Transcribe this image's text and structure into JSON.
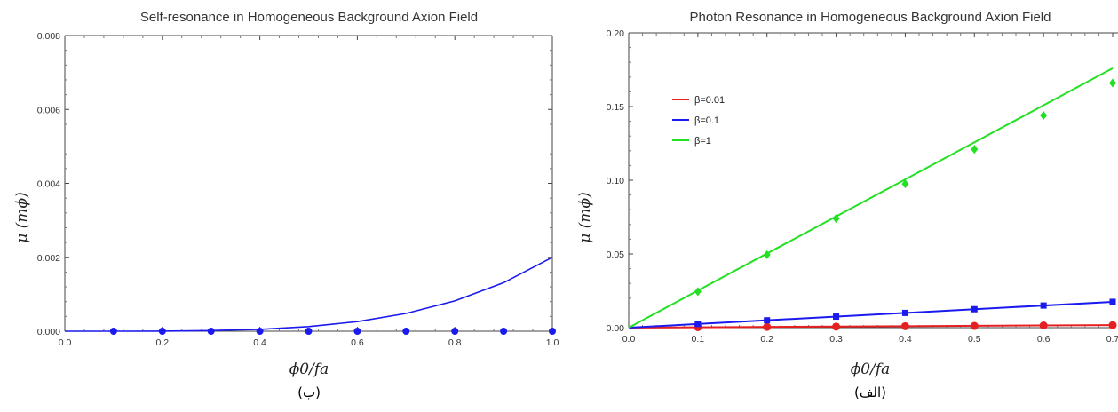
{
  "chart_data": [
    {
      "type": "scatter",
      "title": "Self-resonance in Homogeneous Background Axion Field",
      "xlabel": "ϕ0/fa",
      "ylabel": "μ (mϕ)",
      "caption": "(ب)",
      "xlim": [
        0,
        1.0
      ],
      "ylim": [
        0,
        0.008
      ],
      "xticks": [
        "0.0",
        "0.2",
        "0.4",
        "0.6",
        "0.8",
        "1.0"
      ],
      "yticks": [
        "0.000",
        "0.002",
        "0.004",
        "0.006",
        "0.008"
      ],
      "grid": false,
      "colors": {
        "series": "#1a1aee"
      },
      "series": [
        {
          "kind": "points",
          "x": [
            0.1,
            0.2,
            0.3,
            0.4,
            0.5,
            0.6,
            0.7,
            0.8,
            0.9,
            1.0
          ],
          "y": [
            0,
            0,
            0,
            0,
            0,
            0,
            0,
            0,
            0,
            0
          ]
        },
        {
          "kind": "fit",
          "x": [
            0.0,
            0.1,
            0.2,
            0.3,
            0.4,
            0.5,
            0.6,
            0.7,
            0.8,
            0.9,
            1.0
          ],
          "y": [
            0.0,
            2e-07,
            3.2e-06,
            1.6e-05,
            5.12e-05,
            0.000125,
            0.000259,
            0.00048,
            0.000819,
            0.001312,
            0.002
          ]
        }
      ]
    },
    {
      "type": "scatter",
      "title": "Photon Resonance in Homogeneous Background Axion Field",
      "xlabel": "ϕ0/fa",
      "ylabel": "μ (mϕ)",
      "caption": "(الف)",
      "xlim": [
        0,
        0.7
      ],
      "ylim": [
        0,
        0.2
      ],
      "xticks": [
        "0.0",
        "0.1",
        "0.2",
        "0.3",
        "0.4",
        "0.5",
        "0.6",
        "0.7"
      ],
      "yticks": [
        "0.00",
        "0.05",
        "0.10",
        "0.15",
        "0.20"
      ],
      "grid": false,
      "legend_position": "upper-left",
      "series": [
        {
          "name": "β=0.01",
          "color": "#e62020",
          "marker": "circle",
          "points_x": [
            0.1,
            0.2,
            0.3,
            0.4,
            0.5,
            0.6,
            0.7
          ],
          "points_y": [
            0.0003,
            0.0005,
            0.0007,
            0.001,
            0.0012,
            0.0015,
            0.0017
          ],
          "fit_x": [
            0.0,
            0.7
          ],
          "fit_y": [
            0.0,
            0.00175
          ]
        },
        {
          "name": "β=0.1",
          "color": "#1a1aee",
          "marker": "square",
          "points_x": [
            0.1,
            0.2,
            0.3,
            0.4,
            0.5,
            0.6,
            0.7
          ],
          "points_y": [
            0.0025,
            0.005,
            0.0075,
            0.01,
            0.0125,
            0.015,
            0.0175
          ],
          "fit_x": [
            0.0,
            0.7
          ],
          "fit_y": [
            0.0,
            0.0175
          ]
        },
        {
          "name": "β=1",
          "color": "#22e022",
          "marker": "diamond",
          "points_x": [
            0.1,
            0.2,
            0.3,
            0.4,
            0.5,
            0.6,
            0.7
          ],
          "points_y": [
            0.0245,
            0.0495,
            0.074,
            0.0975,
            0.121,
            0.144,
            0.166
          ],
          "fit_x": [
            0.0,
            0.7
          ],
          "fit_y": [
            0.0,
            0.176
          ]
        }
      ]
    }
  ]
}
